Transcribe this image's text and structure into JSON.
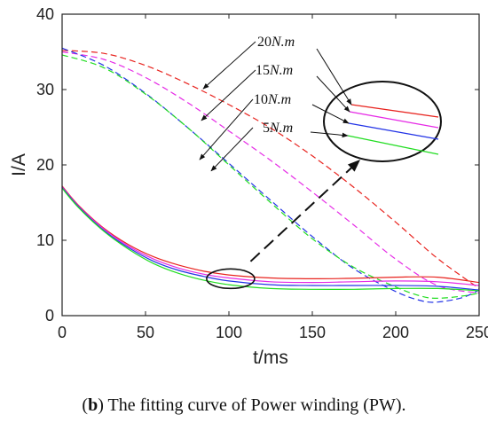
{
  "caption": {
    "prefix": "(",
    "letter": "b",
    "text": ") The fitting curve of Power winding (PW)."
  },
  "colors": {
    "20": "#e8231e",
    "15": "#e62be6",
    "10": "#2233e6",
    "5": "#22dd22",
    "axis": "#222222",
    "annotation": "#111111"
  },
  "chart_data": {
    "type": "line",
    "xlabel": "t/ms",
    "ylabel": "I/A",
    "xlim": [
      0,
      250
    ],
    "ylim": [
      0,
      40
    ],
    "xticks": [
      0,
      50,
      100,
      150,
      200,
      250
    ],
    "yticks": [
      0,
      10,
      20,
      30,
      40
    ],
    "grid": false,
    "annotations": [
      "20N.m",
      "15N.m",
      "10N.m",
      "5N.m"
    ],
    "series": [
      {
        "load": "20",
        "style": "dashed",
        "color": "#e8231e",
        "points": [
          [
            0,
            35.2
          ],
          [
            25,
            34.8
          ],
          [
            50,
            33.2
          ],
          [
            75,
            30.8
          ],
          [
            100,
            28.0
          ],
          [
            125,
            24.9
          ],
          [
            150,
            21.2
          ],
          [
            175,
            17.0
          ],
          [
            200,
            12.4
          ],
          [
            225,
            7.6
          ],
          [
            250,
            3.6
          ]
        ]
      },
      {
        "load": "15",
        "style": "dashed",
        "color": "#e62be6",
        "points": [
          [
            0,
            35.0
          ],
          [
            25,
            34.0
          ],
          [
            50,
            31.6
          ],
          [
            75,
            28.3
          ],
          [
            100,
            24.5
          ],
          [
            125,
            20.6
          ],
          [
            150,
            16.4
          ],
          [
            175,
            12.0
          ],
          [
            200,
            7.5
          ],
          [
            225,
            4.0
          ],
          [
            250,
            3.0
          ]
        ]
      },
      {
        "load": "10",
        "style": "dashed",
        "color": "#2233e6",
        "points": [
          [
            0,
            35.5
          ],
          [
            25,
            33.2
          ],
          [
            50,
            29.5
          ],
          [
            75,
            25.0
          ],
          [
            100,
            20.2
          ],
          [
            125,
            15.3
          ],
          [
            150,
            10.5
          ],
          [
            175,
            6.2
          ],
          [
            200,
            3.2
          ],
          [
            215,
            2.0
          ],
          [
            225,
            1.8
          ],
          [
            240,
            2.4
          ],
          [
            250,
            3.4
          ]
        ]
      },
      {
        "load": "5",
        "style": "dashed",
        "color": "#22dd22",
        "points": [
          [
            0,
            34.6
          ],
          [
            25,
            32.9
          ],
          [
            50,
            29.4
          ],
          [
            75,
            25.0
          ],
          [
            100,
            20.0
          ],
          [
            125,
            15.0
          ],
          [
            150,
            10.2
          ],
          [
            175,
            6.4
          ],
          [
            200,
            3.8
          ],
          [
            215,
            2.6
          ],
          [
            225,
            2.3
          ],
          [
            240,
            2.6
          ],
          [
            250,
            3.0
          ]
        ]
      },
      {
        "load": "20",
        "style": "solid",
        "color": "#e8231e",
        "points": [
          [
            0,
            17.2
          ],
          [
            10,
            14.6
          ],
          [
            25,
            11.6
          ],
          [
            40,
            9.4
          ],
          [
            55,
            7.8
          ],
          [
            70,
            6.7
          ],
          [
            85,
            5.9
          ],
          [
            100,
            5.4
          ],
          [
            125,
            5.0
          ],
          [
            150,
            4.9
          ],
          [
            175,
            4.95
          ],
          [
            200,
            5.1
          ],
          [
            225,
            5.1
          ],
          [
            250,
            4.4
          ]
        ]
      },
      {
        "load": "15",
        "style": "solid",
        "color": "#e62be6",
        "points": [
          [
            0,
            17.1
          ],
          [
            10,
            14.5
          ],
          [
            25,
            11.5
          ],
          [
            40,
            9.2
          ],
          [
            55,
            7.5
          ],
          [
            70,
            6.3
          ],
          [
            85,
            5.5
          ],
          [
            100,
            5.0
          ],
          [
            125,
            4.5
          ],
          [
            150,
            4.4
          ],
          [
            175,
            4.5
          ],
          [
            200,
            4.6
          ],
          [
            225,
            4.5
          ],
          [
            250,
            4.0
          ]
        ]
      },
      {
        "load": "10",
        "style": "solid",
        "color": "#2233e6",
        "points": [
          [
            0,
            17.0
          ],
          [
            10,
            14.4
          ],
          [
            25,
            11.3
          ],
          [
            40,
            9.0
          ],
          [
            55,
            7.2
          ],
          [
            70,
            6.0
          ],
          [
            85,
            5.2
          ],
          [
            100,
            4.6
          ],
          [
            125,
            4.1
          ],
          [
            150,
            4.0
          ],
          [
            175,
            4.0
          ],
          [
            200,
            4.0
          ],
          [
            225,
            3.9
          ],
          [
            250,
            3.4
          ]
        ]
      },
      {
        "load": "5",
        "style": "solid",
        "color": "#22dd22",
        "points": [
          [
            0,
            16.9
          ],
          [
            10,
            14.3
          ],
          [
            25,
            11.2
          ],
          [
            40,
            8.8
          ],
          [
            55,
            6.9
          ],
          [
            70,
            5.6
          ],
          [
            85,
            4.7
          ],
          [
            100,
            4.1
          ],
          [
            125,
            3.6
          ],
          [
            150,
            3.5
          ],
          [
            175,
            3.5
          ],
          [
            200,
            3.6
          ],
          [
            225,
            3.6
          ],
          [
            250,
            3.3
          ]
        ]
      }
    ]
  }
}
